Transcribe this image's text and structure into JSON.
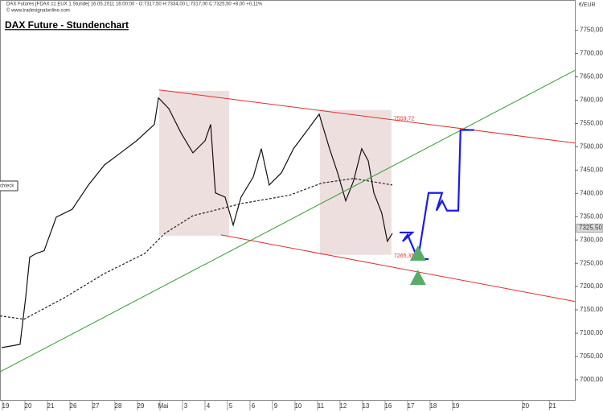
{
  "chart_data": {
    "type": "line",
    "header": "DAX Futures [FDAX c1 EUX 1 Stunde] 16.05.2011 16:00:00 - O:7317,50 H:7334,00 L:7317,00 C:7325,50 +8,00 +0,11%",
    "source": "© www.tradesignalonline.com",
    "title": "DAX Future - Stundenchart",
    "currency": "€/EUR",
    "side_label": "chteck",
    "xlim": [
      -0.25,
      25.29
    ],
    "ylim": [
      6955,
      7815
    ],
    "yticks": [
      {
        "value": 7000,
        "label": "7000,00"
      },
      {
        "value": 7050,
        "label": "7050,00"
      },
      {
        "value": 7100,
        "label": "7100,00"
      },
      {
        "value": 7150,
        "label": "7150,00"
      },
      {
        "value": 7200,
        "label": "7200,00"
      },
      {
        "value": 7250,
        "label": "7250,00"
      },
      {
        "value": 7300,
        "label": "7300,00"
      },
      {
        "value": 7350,
        "label": "7350,00"
      },
      {
        "value": 7400,
        "label": "7400,00"
      },
      {
        "value": 7450,
        "label": "7450,00"
      },
      {
        "value": 7500,
        "label": "7500,00"
      },
      {
        "value": 7550,
        "label": "7550,00"
      },
      {
        "value": 7600,
        "label": "7600,00"
      },
      {
        "value": 7650,
        "label": "7650,00"
      },
      {
        "value": 7700,
        "label": "7700,00"
      },
      {
        "value": 7750,
        "label": "7750,00"
      }
    ],
    "xticks": [
      {
        "value": 0,
        "label": "19"
      },
      {
        "value": 1,
        "label": "20"
      },
      {
        "value": 2,
        "label": "21"
      },
      {
        "value": 3,
        "label": "26"
      },
      {
        "value": 4,
        "label": "27"
      },
      {
        "value": 5,
        "label": "28"
      },
      {
        "value": 6,
        "label": "29"
      },
      {
        "value": 7,
        "label": "Mai"
      },
      {
        "value": 8,
        "label": "3"
      },
      {
        "value": 9,
        "label": "4"
      },
      {
        "value": 10,
        "label": "5"
      },
      {
        "value": 11,
        "label": "6"
      },
      {
        "value": 12,
        "label": "9"
      },
      {
        "value": 13,
        "label": "10"
      },
      {
        "value": 14,
        "label": "11"
      },
      {
        "value": 15,
        "label": "12"
      },
      {
        "value": 16,
        "label": "13"
      },
      {
        "value": 17,
        "label": "16"
      },
      {
        "value": 18,
        "label": "17"
      },
      {
        "value": 19,
        "label": "18"
      },
      {
        "value": 20,
        "label": "19"
      },
      {
        "value": 23.1,
        "label": "20"
      },
      {
        "value": 24.3,
        "label": "21"
      }
    ],
    "regions": [
      {
        "x": [
          6.82,
          9.93
        ],
        "y": [
          7309,
          7620
        ],
        "color": "#eedfdf"
      },
      {
        "x": [
          13.96,
          17.14
        ],
        "y": [
          7268,
          7579
        ],
        "color": "#eedfdf"
      }
    ],
    "series": [
      {
        "color": "#111111",
        "width": 1.2,
        "x": [
          -0.18,
          0.64,
          0.89,
          1.07,
          1.36,
          1.71,
          2.25,
          2.96,
          3.68,
          4.39,
          5.11,
          5.82,
          6.61,
          6.79,
          7.25,
          7.79,
          8.32,
          8.86,
          9.11,
          9.32,
          9.75,
          10.11,
          10.46,
          11.0,
          11.36,
          11.71,
          12.25,
          12.79,
          13.32,
          13.93,
          14.39,
          14.75,
          15.11,
          15.46,
          15.82,
          16.11,
          16.36,
          16.71,
          16.96,
          17.18
        ],
        "values": [
          7069,
          7076,
          7176,
          7263,
          7271,
          7277,
          7349,
          7366,
          7418,
          7461,
          7487,
          7513,
          7548,
          7605,
          7582,
          7530,
          7487,
          7513,
          7548,
          7401,
          7392,
          7332,
          7392,
          7435,
          7496,
          7418,
          7444,
          7496,
          7530,
          7570,
          7496,
          7444,
          7384,
          7427,
          7496,
          7470,
          7401,
          7358,
          7297,
          7314
        ]
      },
      {
        "color": "#222222",
        "width": 1.2,
        "dash": true,
        "x": [
          -0.25,
          0.82,
          2.61,
          4.39,
          6.18,
          7.07,
          8.32,
          10.46,
          12.61,
          14.04,
          15.46,
          17.18
        ],
        "values": [
          7137,
          7130,
          7176,
          7228,
          7271,
          7314,
          7352,
          7378,
          7396,
          7422,
          7432,
          7418
        ]
      },
      {
        "color": "#e03030",
        "width": 1,
        "x": [
          6.82,
          25.29
        ],
        "values": [
          7622,
          7508
        ]
      },
      {
        "color": "#e03030",
        "width": 1,
        "x": [
          9.57,
          25.29
        ],
        "values": [
          7311,
          7168
        ]
      },
      {
        "color": "#2ca02c",
        "width": 1,
        "x": [
          -0.25,
          25.29
        ],
        "values": [
          7017,
          7664
        ]
      },
      {
        "color": "#1a1aee",
        "width": 2.2,
        "x": [
          17.5,
          18.07,
          17.64,
          17.86,
          18.32,
          18.79,
          18.32,
          18.79,
          19.39,
          19.14,
          19.39,
          19.61,
          20.11,
          20.21,
          20.82
        ],
        "values": [
          7316,
          7316,
          7297,
          7311,
          7259,
          7259,
          7259,
          7401,
          7401,
          7363,
          7384,
          7363,
          7363,
          7536,
          7536
        ]
      }
    ],
    "levels": [
      {
        "x": 17.25,
        "value": 7559.72,
        "label": "7559,72",
        "color": "#e03030"
      },
      {
        "x": 17.25,
        "value": 7265.35,
        "label": "7265,35",
        "color": "#e03030"
      }
    ],
    "last_price": {
      "value": 7325.5,
      "label": "7325,50"
    },
    "markers": {
      "color": "#5aab6a",
      "x": [
        18.32,
        18.32
      ],
      "values": [
        7271,
        7219
      ]
    }
  }
}
